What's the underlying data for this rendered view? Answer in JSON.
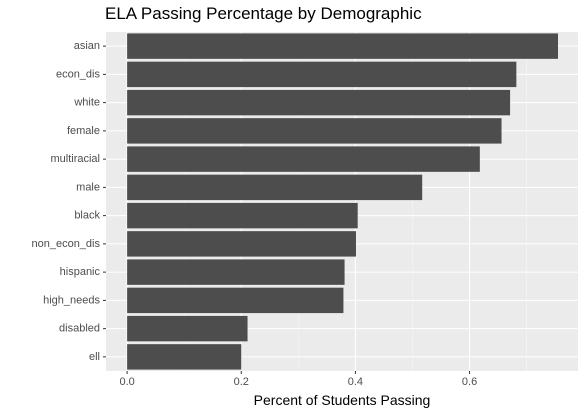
{
  "chart_data": {
    "type": "bar",
    "orientation": "horizontal",
    "title": "ELA Passing Percentage by Demographic",
    "xlabel": "Percent of Students Passing",
    "ylabel": "",
    "categories": [
      "asian",
      "econ_dis",
      "white",
      "female",
      "multiracial",
      "male",
      "black",
      "non_econ_dis",
      "hispanic",
      "high_needs",
      "disabled",
      "ell"
    ],
    "values": [
      0.755,
      0.682,
      0.671,
      0.656,
      0.618,
      0.517,
      0.404,
      0.401,
      0.381,
      0.379,
      0.211,
      0.2
    ],
    "xlim": [
      -0.037,
      0.79
    ],
    "xticks": [
      0.0,
      0.2,
      0.4,
      0.6
    ],
    "xtick_labels": [
      "0.0",
      "0.2",
      "0.4",
      "0.6"
    ],
    "grid": true,
    "legend": "none",
    "colors": {
      "bar": "#4d4d4d",
      "panel": "#ebebeb",
      "grid_major": "#ffffff",
      "tick_text": "#4d4d4d"
    }
  }
}
